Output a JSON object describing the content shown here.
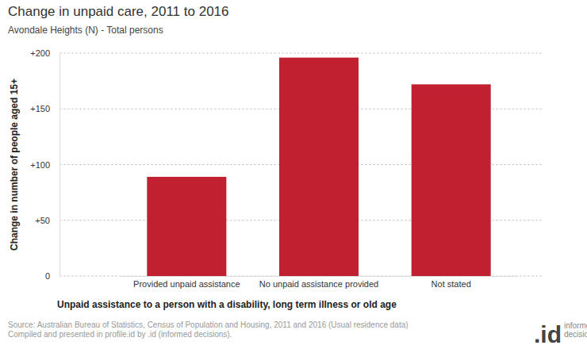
{
  "chart_data": {
    "type": "bar",
    "title": "Change in unpaid care, 2011 to 2016",
    "subtitle": "Avondale Heights (N) - Total persons",
    "x_label": "Unpaid assistance to a person with a disability, long term illness or old age",
    "y_label": "Change in number of people aged 15+",
    "categories": [
      "Provided unpaid assistance",
      "No unpaid assistance provided",
      "Not stated"
    ],
    "values": [
      89,
      196,
      172
    ],
    "color": "#c0202f",
    "ylim": [
      0,
      200
    ],
    "yticks": [
      0,
      {
        "value": 50,
        "label": "+50"
      },
      {
        "value": 100,
        "label": "+100"
      },
      {
        "value": 150,
        "label": "+150"
      },
      {
        "value": 200,
        "label": "+200"
      }
    ],
    "grid": true,
    "source": [
      "Source: Australian Bureau of Statistics, Census of Population and Housing, 2011 and 2016 (Usual residence data)",
      "Compiled and presented in profile.id by .id (informed decisions)."
    ],
    "logo": ".id",
    "logo_tagline": "informed decisions"
  }
}
